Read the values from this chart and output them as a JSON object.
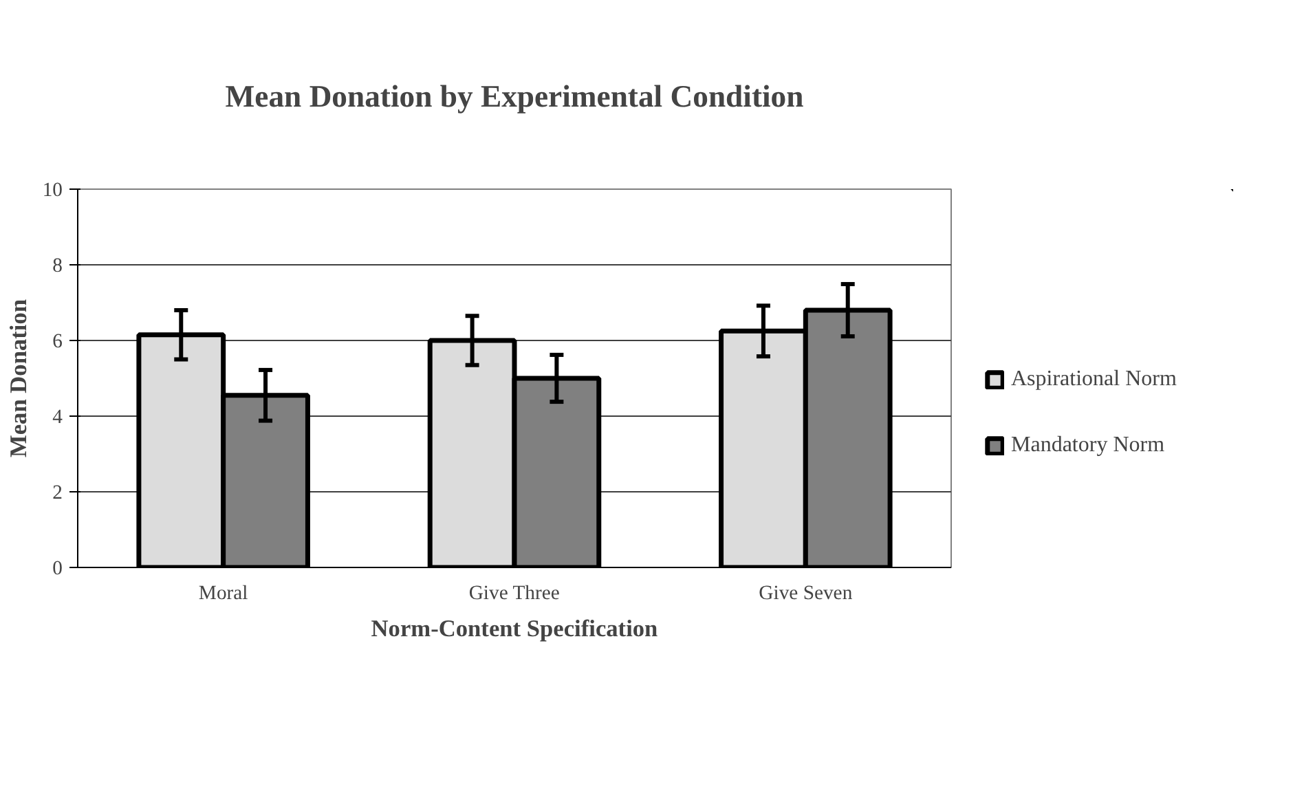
{
  "chart_data": {
    "type": "bar",
    "title": "Mean Donation by Experimental Condition",
    "xlabel": "Norm-Content Specification",
    "ylabel": "Mean Donation",
    "categories": [
      "Moral",
      "Give Three",
      "Give Seven"
    ],
    "series": [
      {
        "name": "Aspirational Norm",
        "color": "#dcdcdc",
        "values": [
          6.15,
          6.0,
          6.25
        ],
        "errors": [
          0.65,
          0.65,
          0.67
        ]
      },
      {
        "name": "Mandatory Norm",
        "color": "#808080",
        "values": [
          4.55,
          5.0,
          6.8
        ],
        "errors": [
          0.67,
          0.62,
          0.69
        ]
      }
    ],
    "ylim": [
      0,
      10
    ],
    "yticks": [
      0,
      2,
      4,
      6,
      8,
      10
    ],
    "grid": "y",
    "legend": "right"
  }
}
